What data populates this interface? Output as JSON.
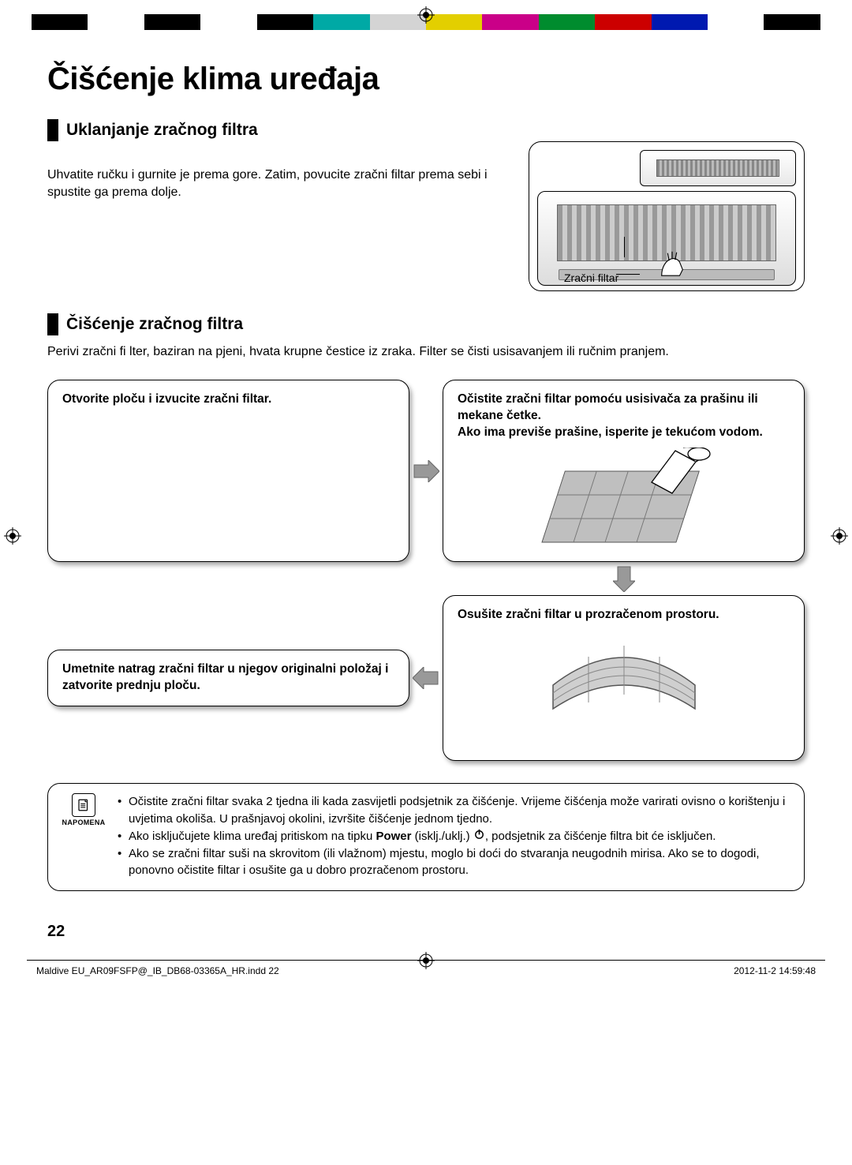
{
  "colorbar": [
    "#000000",
    "#ffffff",
    "#000000",
    "#ffffff",
    "#000000",
    "#00a9a5",
    "#d4d4d4",
    "#e3cf00",
    "#ca0088",
    "#008c2e",
    "#cc0000",
    "#0019b0",
    "#ffffff",
    "#000000"
  ],
  "title": "Čišćenje klima uređaja",
  "section1": {
    "heading": "Uklanjanje zračnog filtra",
    "text": "Uhvatite ručku i gurnite je prema gore. Zatim, povucite zračni filtar prema sebi i spustite ga prema dolje.",
    "filter_label": "Zračni filtar"
  },
  "section2": {
    "heading": "Čišćenje zračnog filtra",
    "text": "Perivi zračni fi lter, baziran na pjeni, hvata krupne čestice iz zraka. Filter se čisti usisavanjem ili ručnim pranjem."
  },
  "steps": {
    "s1": "Otvorite ploču i izvucite zračni filtar.",
    "s2a": "Očistite zračni filtar pomoću usisivača za prašinu ili mekane četke.",
    "s2b": "Ako ima previše prašine, isperite je tekućom vodom.",
    "s3": "Osušite zračni filtar u prozračenom prostoru.",
    "s4": "Umetnite natrag zračni filtar u njegov originalni položaj i zatvorite prednju ploču."
  },
  "notes": {
    "label": "NAPOMENA",
    "n1": "Očistite zračni filtar svaka 2 tjedna ili kada zasvijetli podsjetnik za čišćenje. Vrijeme čišćenja može varirati ovisno o korištenju i uvjetima okoliša. U prašnjavoj okolini, izvršite čišćenje jednom tjedno.",
    "n2a": "Ako isključujete klima uređaj pritiskom na tipku ",
    "n2b": "Power",
    "n2c": " (isklj./uklj.) ",
    "n2d": ", podsjetnik za čišćenje filtra bit će isključen.",
    "n3": "Ako se zračni filtar suši na skrovitom (ili vlažnom) mjestu, moglo bi doći do stvaranja neugodnih mirisa. Ako se to dogodi, ponovno očistite filtar i osušite ga u dobro prozračenom prostoru."
  },
  "page_number": "22",
  "footer": {
    "file": "Maldive EU_AR09FSFP@_IB_DB68-03365A_HR.indd   22",
    "timestamp": "2012-11-2   14:59:48"
  }
}
